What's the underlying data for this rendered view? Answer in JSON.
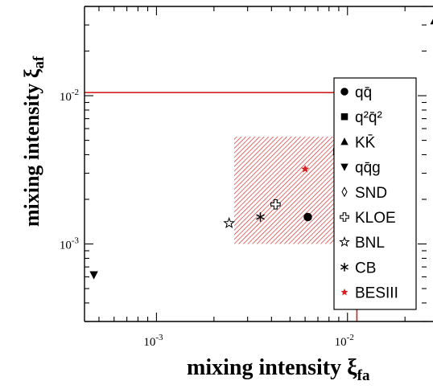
{
  "chart_data": {
    "type": "scatter",
    "xlabel": "mixing intensity ξ",
    "xlabel_sub": "fa",
    "ylabel": "mixing intensity ξ",
    "ylabel_sub": "af",
    "x_scale": "log",
    "y_scale": "log",
    "xlim": [
      0.00042,
      0.03
    ],
    "ylim": [
      0.0003,
      0.04
    ],
    "x_ticks": [
      {
        "value": 0.001,
        "base": "10",
        "exp": "-3"
      },
      {
        "value": 0.01,
        "base": "10",
        "exp": "-2"
      }
    ],
    "y_ticks": [
      {
        "value": 0.001,
        "base": "10",
        "exp": "-3"
      },
      {
        "value": 0.01,
        "base": "10",
        "exp": "-2"
      }
    ],
    "grid": false,
    "legend_position": "right",
    "colors": {
      "red": "#d42020",
      "black": "#000000"
    },
    "boundary": {
      "x_max": 0.0112,
      "y_max": 0.0105
    },
    "region": {
      "x": [
        0.00255,
        0.0093
      ],
      "y": [
        0.001,
        0.0053
      ]
    },
    "series": [
      {
        "name": "qq̄",
        "marker": "circle",
        "x": [
          0.0062
        ],
        "y": [
          0.00152
        ]
      },
      {
        "name": "q²q̄²",
        "marker": "square",
        "x": [
          0.0088
        ],
        "y": [
          0.0042
        ]
      },
      {
        "name": "KK̄",
        "marker": "triangle-up",
        "x": [
          0.0285
        ],
        "y": [
          0.032
        ]
      },
      {
        "name": "qq̄g",
        "marker": "triangle-down",
        "x": [
          0.00047
        ],
        "y": [
          0.00062
        ]
      },
      {
        "name": "SND",
        "marker": "diamond-open",
        "x": [
          0.012
        ],
        "y": [
          0.0092
        ]
      },
      {
        "name": "KLOE",
        "marker": "cross-open",
        "x": [
          0.0042
        ],
        "y": [
          0.00185
        ]
      },
      {
        "name": "BNL",
        "marker": "star-open",
        "x": [
          0.0024
        ],
        "y": [
          0.00138
        ]
      },
      {
        "name": "CB",
        "marker": "asterisk",
        "x": [
          0.0035
        ],
        "y": [
          0.00152
        ]
      },
      {
        "name": "BESIII",
        "marker": "star-red",
        "x": [
          0.006
        ],
        "y": [
          0.0032
        ]
      }
    ]
  }
}
